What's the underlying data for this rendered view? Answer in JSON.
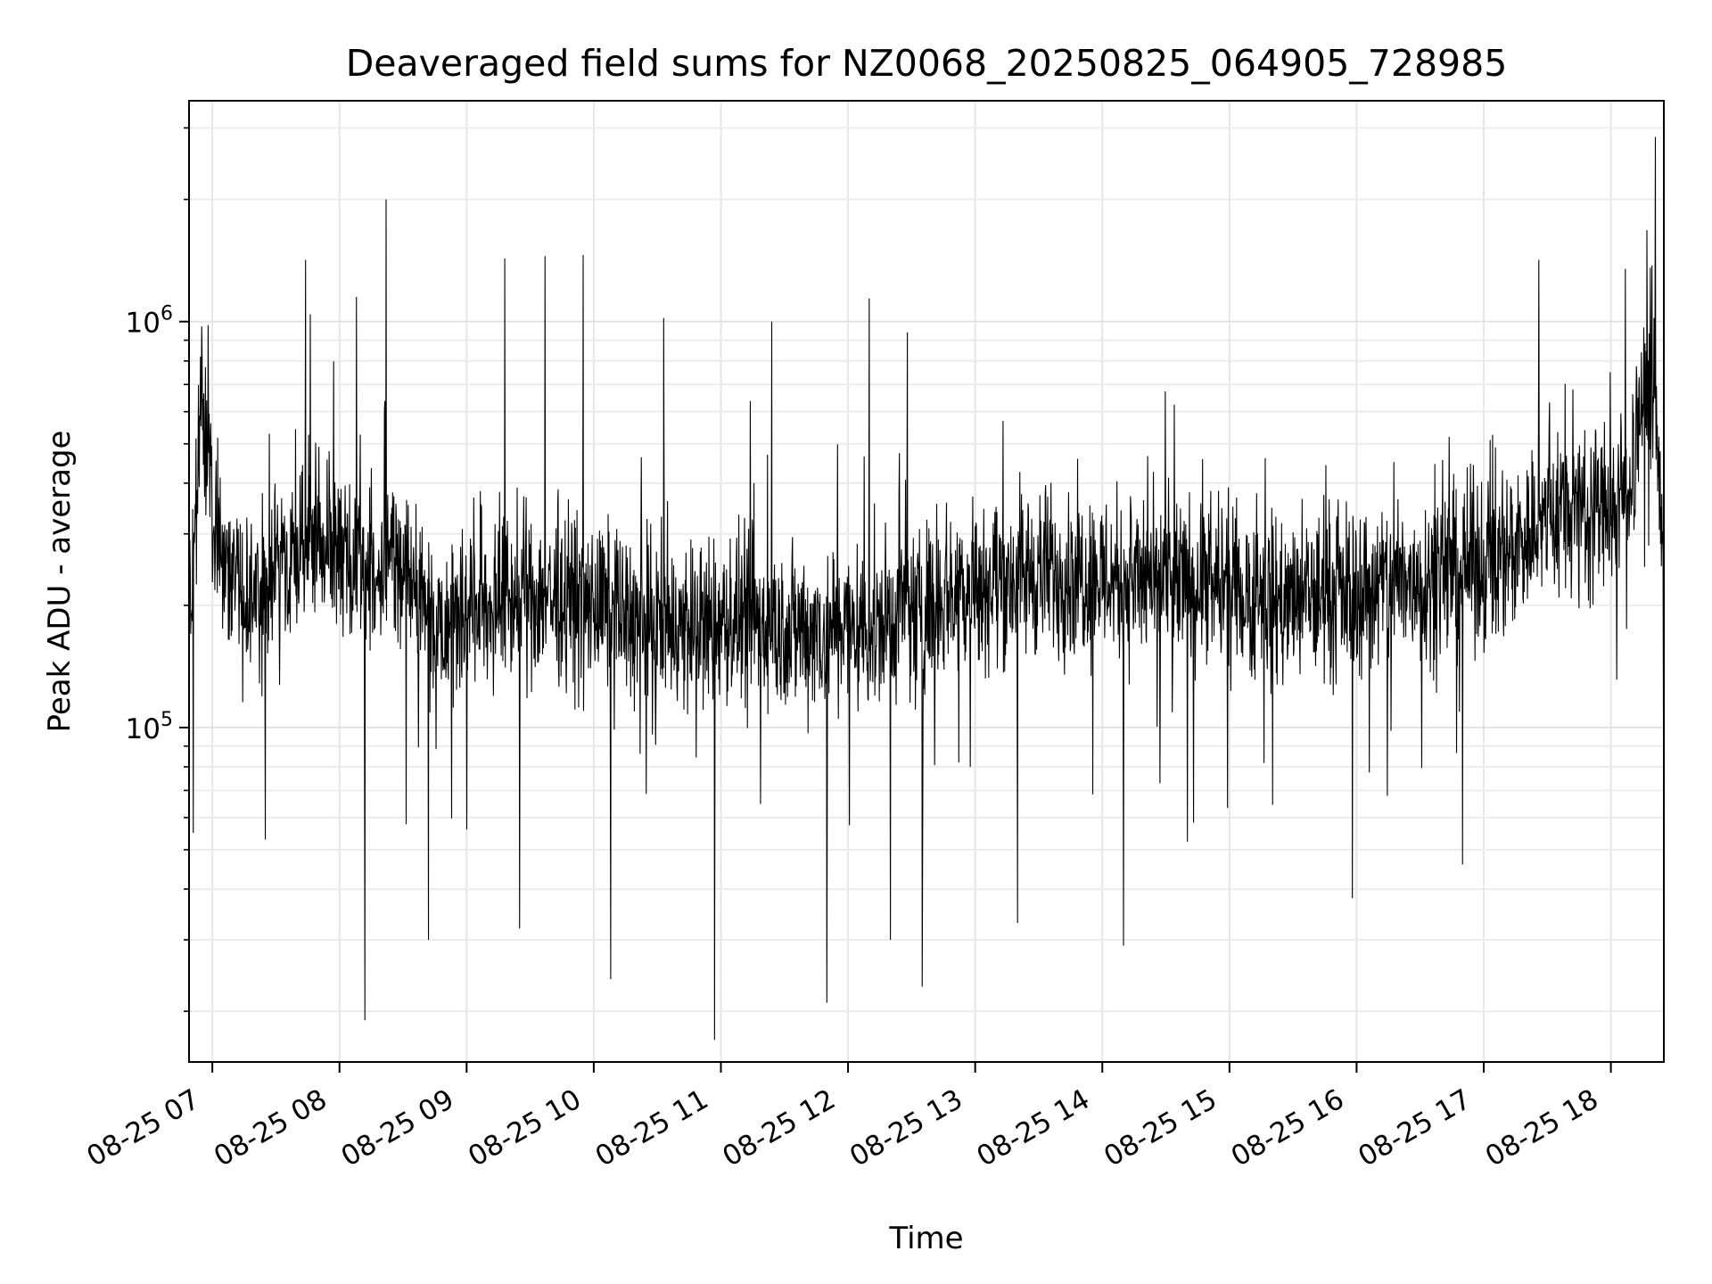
{
  "chart_data": {
    "type": "line",
    "title": "Deaveraged field sums for NZ0068_20250825_064905_728985",
    "xlabel": "Time",
    "ylabel": "Peak ADU - average",
    "x_axis": {
      "kind": "time",
      "range": [
        "2025-08-25 06:49",
        "2025-08-25 18:25"
      ],
      "ticks": [
        {
          "value": "2025-08-25 07:00",
          "label": "08-25 07"
        },
        {
          "value": "2025-08-25 08:00",
          "label": "08-25 08"
        },
        {
          "value": "2025-08-25 09:00",
          "label": "08-25 09"
        },
        {
          "value": "2025-08-25 10:00",
          "label": "08-25 10"
        },
        {
          "value": "2025-08-25 11:00",
          "label": "08-25 11"
        },
        {
          "value": "2025-08-25 12:00",
          "label": "08-25 12"
        },
        {
          "value": "2025-08-25 13:00",
          "label": "08-25 13"
        },
        {
          "value": "2025-08-25 14:00",
          "label": "08-25 14"
        },
        {
          "value": "2025-08-25 15:00",
          "label": "08-25 15"
        },
        {
          "value": "2025-08-25 16:00",
          "label": "08-25 16"
        },
        {
          "value": "2025-08-25 17:00",
          "label": "08-25 17"
        },
        {
          "value": "2025-08-25 18:00",
          "label": "08-25 18"
        }
      ]
    },
    "y_axis": {
      "scale": "log",
      "range": [
        15000,
        3500000
      ],
      "major_ticks": [
        {
          "value": 100000,
          "base": "10",
          "exp": "5"
        },
        {
          "value": 1000000,
          "base": "10",
          "exp": "6"
        }
      ],
      "minor_ticks": [
        20000,
        30000,
        40000,
        50000,
        60000,
        70000,
        80000,
        90000,
        200000,
        300000,
        400000,
        500000,
        600000,
        700000,
        800000,
        900000,
        2000000,
        3000000
      ]
    },
    "grid": true,
    "grid_which": "both",
    "series": [
      {
        "color": "#000000",
        "data": [
          {
            "t": "2025-08-25 06:49",
            "v": 230000
          },
          {
            "t": "2025-08-25 06:52",
            "v": 330000
          },
          {
            "t": "2025-08-25 06:55",
            "v": 780000
          },
          {
            "t": "2025-08-25 06:58",
            "v": 400000
          },
          {
            "t": "2025-08-25 07:05",
            "v": 280000
          },
          {
            "t": "2025-08-25 07:15",
            "v": 240000
          },
          {
            "t": "2025-08-25 07:25",
            "v": 260000
          },
          {
            "t": "2025-08-25 07:35",
            "v": 250000
          },
          {
            "t": "2025-08-25 07:45",
            "v": 330000
          },
          {
            "t": "2025-08-25 07:55",
            "v": 300000
          },
          {
            "t": "2025-08-25 08:05",
            "v": 270000
          },
          {
            "t": "2025-08-25 08:15",
            "v": 270000
          },
          {
            "t": "2025-08-25 08:25",
            "v": 290000
          },
          {
            "t": "2025-08-25 08:35",
            "v": 250000
          },
          {
            "t": "2025-08-25 08:45",
            "v": 200000
          },
          {
            "t": "2025-08-25 08:55",
            "v": 210000
          },
          {
            "t": "2025-08-25 09:10",
            "v": 220000
          },
          {
            "t": "2025-08-25 09:30",
            "v": 230000
          },
          {
            "t": "2025-08-25 09:50",
            "v": 220000
          },
          {
            "t": "2025-08-25 10:10",
            "v": 210000
          },
          {
            "t": "2025-08-25 10:30",
            "v": 190000
          },
          {
            "t": "2025-08-25 10:50",
            "v": 190000
          },
          {
            "t": "2025-08-25 11:10",
            "v": 200000
          },
          {
            "t": "2025-08-25 11:30",
            "v": 190000
          },
          {
            "t": "2025-08-25 11:50",
            "v": 190000
          },
          {
            "t": "2025-08-25 12:10",
            "v": 190000
          },
          {
            "t": "2025-08-25 12:30",
            "v": 210000
          },
          {
            "t": "2025-08-25 12:50",
            "v": 240000
          },
          {
            "t": "2025-08-25 13:10",
            "v": 250000
          },
          {
            "t": "2025-08-25 13:30",
            "v": 260000
          },
          {
            "t": "2025-08-25 13:50",
            "v": 260000
          },
          {
            "t": "2025-08-25 14:10",
            "v": 250000
          },
          {
            "t": "2025-08-25 14:30",
            "v": 240000
          },
          {
            "t": "2025-08-25 14:50",
            "v": 240000
          },
          {
            "t": "2025-08-25 15:10",
            "v": 230000
          },
          {
            "t": "2025-08-25 15:30",
            "v": 220000
          },
          {
            "t": "2025-08-25 15:50",
            "v": 230000
          },
          {
            "t": "2025-08-25 16:10",
            "v": 240000
          },
          {
            "t": "2025-08-25 16:30",
            "v": 250000
          },
          {
            "t": "2025-08-25 16:50",
            "v": 270000
          },
          {
            "t": "2025-08-25 17:05",
            "v": 280000
          },
          {
            "t": "2025-08-25 17:20",
            "v": 320000
          },
          {
            "t": "2025-08-25 17:35",
            "v": 370000
          },
          {
            "t": "2025-08-25 17:50",
            "v": 380000
          },
          {
            "t": "2025-08-25 18:05",
            "v": 380000
          },
          {
            "t": "2025-08-25 18:15",
            "v": 650000
          },
          {
            "t": "2025-08-25 18:20",
            "v": 800000
          },
          {
            "t": "2025-08-25 18:25",
            "v": 300000
          }
        ],
        "spikes": [
          {
            "t": "2025-08-25 06:58",
            "v": 980000
          },
          {
            "t": "2025-08-25 07:44",
            "v": 1420000
          },
          {
            "t": "2025-08-25 08:08",
            "v": 1150000
          },
          {
            "t": "2025-08-25 08:22",
            "v": 2000000
          },
          {
            "t": "2025-08-25 09:18",
            "v": 1430000
          },
          {
            "t": "2025-08-25 09:37",
            "v": 1450000
          },
          {
            "t": "2025-08-25 09:55",
            "v": 1460000
          },
          {
            "t": "2025-08-25 10:33",
            "v": 1020000
          },
          {
            "t": "2025-08-25 11:24",
            "v": 1000000
          },
          {
            "t": "2025-08-25 12:10",
            "v": 1140000
          },
          {
            "t": "2025-08-25 12:28",
            "v": 940000
          },
          {
            "t": "2025-08-25 17:26",
            "v": 1420000
          },
          {
            "t": "2025-08-25 18:17",
            "v": 1680000
          },
          {
            "t": "2025-08-25 18:21",
            "v": 2850000
          },
          {
            "t": "2025-08-25 08:12",
            "v": 19000
          },
          {
            "t": "2025-08-25 10:57",
            "v": 17000
          },
          {
            "t": "2025-08-25 11:50",
            "v": 21000
          },
          {
            "t": "2025-08-25 12:35",
            "v": 23000
          },
          {
            "t": "2025-08-25 10:08",
            "v": 24000
          },
          {
            "t": "2025-08-25 14:10",
            "v": 29000
          },
          {
            "t": "2025-08-25 12:20",
            "v": 30000
          },
          {
            "t": "2025-08-25 08:42",
            "v": 30000
          },
          {
            "t": "2025-08-25 09:25",
            "v": 32000
          },
          {
            "t": "2025-08-25 13:20",
            "v": 33000
          },
          {
            "t": "2025-08-25 15:58",
            "v": 38000
          },
          {
            "t": "2025-08-25 16:50",
            "v": 46000
          },
          {
            "t": "2025-08-25 07:25",
            "v": 53000
          },
          {
            "t": "2025-08-25 06:51",
            "v": 55000
          }
        ],
        "noise_band": {
          "low_factor": 0.45,
          "high_factor": 1.9
        }
      }
    ]
  }
}
